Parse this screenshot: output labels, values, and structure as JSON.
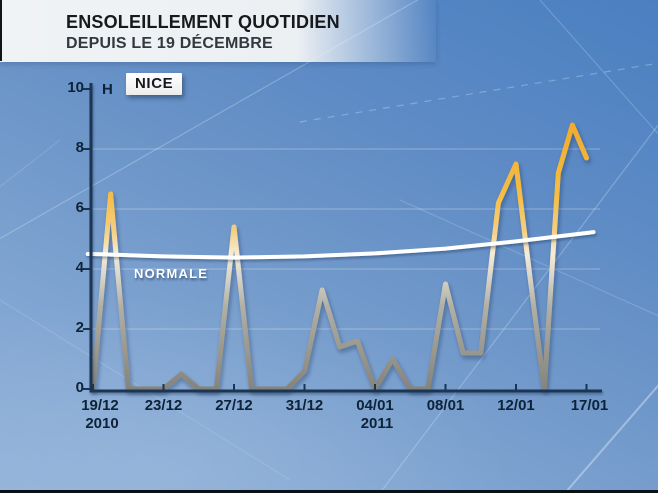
{
  "header": {
    "title_line1": "ENSOLEILLEMENT QUOTIDIEN",
    "title_line2": "DEPUIS LE 19 DÉCEMBRE"
  },
  "station_label": "NICE",
  "unit_label": "H",
  "normale_label": "NORMALE",
  "colors": {
    "background_top": "#4a7fc1",
    "background_bottom": "#90b1d8",
    "axis": "#1a3553",
    "tick_text": "#0e2337",
    "line_gold": "#f0a92c",
    "line_cream": "#f6ecd4",
    "line_gray": "#84837b",
    "normale_line": "#ffffff",
    "header_band": "#eef1f3",
    "title_text": "#17191d"
  },
  "chart_data": {
    "type": "line",
    "title": "Ensoleillement quotidien depuis le 19 décembre",
    "station": "Nice",
    "xlabel": "",
    "ylabel": "H",
    "ylim": [
      0,
      10
    ],
    "y_ticks": [
      0,
      2,
      4,
      6,
      8,
      10
    ],
    "gridline_values": [
      2,
      4,
      6,
      8
    ],
    "grid": true,
    "legend_position": "none",
    "x_ticks": [
      {
        "day": 0,
        "label": "19/12",
        "sub": "2010",
        "dx": 7
      },
      {
        "day": 4,
        "label": "23/12"
      },
      {
        "day": 8,
        "label": "27/12"
      },
      {
        "day": 12,
        "label": "31/12"
      },
      {
        "day": 16,
        "label": "04/01",
        "sub": "2011"
      },
      {
        "day": 20,
        "label": "08/01"
      },
      {
        "day": 24,
        "label": "12/01"
      },
      {
        "day": 29,
        "label": "17/01",
        "dx": 3
      }
    ],
    "series": [
      {
        "name": "ensoleillement quotidien (heures)",
        "dates": [
          "19/12",
          "20/12",
          "21/12",
          "22/12",
          "23/12",
          "24/12",
          "25/12",
          "26/12",
          "27/12",
          "28/12",
          "29/12",
          "30/12",
          "31/12",
          "01/01",
          "02/01",
          "03/01",
          "04/01",
          "05/01",
          "06/01",
          "07/01",
          "08/01",
          "09/01",
          "10/01",
          "11/01",
          "12/01",
          "13/01",
          "14/01",
          "15/01",
          "16/01",
          "17/01"
        ],
        "values": [
          0,
          6.5,
          0,
          0,
          0,
          0.5,
          0,
          0,
          5.4,
          0,
          0,
          0,
          0.6,
          3.3,
          1.4,
          1.6,
          0,
          1.0,
          0,
          0,
          3.5,
          1.2,
          1.2,
          6.2,
          7.5,
          3.7,
          0,
          7.2,
          8.8,
          7.7
        ]
      },
      {
        "name": "normale (heures)",
        "points": [
          [
            -0.3,
            4.5
          ],
          [
            0,
            4.5
          ],
          [
            4,
            4.42
          ],
          [
            8,
            4.38
          ],
          [
            12,
            4.42
          ],
          [
            16,
            4.52
          ],
          [
            20,
            4.68
          ],
          [
            24,
            4.92
          ],
          [
            29,
            5.2
          ],
          [
            29.5,
            5.23
          ]
        ]
      }
    ]
  }
}
